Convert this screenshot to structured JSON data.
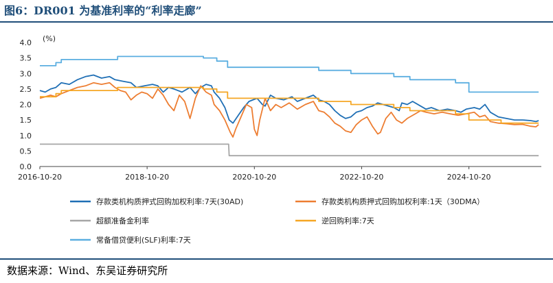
{
  "figure": {
    "title": "图6：DR001 为基准利率的“利率走廊”",
    "source": "数据来源：Wind、东吴证券研究所"
  },
  "chart_data": {
    "type": "line",
    "title": "图6：DR001 为基准利率的“利率走廊”",
    "xlabel": "",
    "ylabel": "(%)",
    "ylim": [
      0,
      4
    ],
    "xlim": [
      2016.8,
      2026.15
    ],
    "yticks": [
      "0.0",
      "0.5",
      "1.0",
      "1.5",
      "2.0",
      "2.5",
      "3.0",
      "3.5",
      "4.0"
    ],
    "xticks": [
      {
        "label": "2016-10-20",
        "x": 2016.8
      },
      {
        "label": "2018-10-20",
        "x": 2018.8
      },
      {
        "label": "2020-10-20",
        "x": 2020.8
      },
      {
        "label": "2022-10-20",
        "x": 2022.8
      },
      {
        "label": "2024-10-20",
        "x": 2024.8
      }
    ],
    "grid": false,
    "legend_position": "bottom",
    "series": [
      {
        "name": "存款类机构质押式回购加权利率:7天(30AD)",
        "color": "#1f6fb5",
        "points": [
          [
            2016.8,
            2.45
          ],
          [
            2016.9,
            2.4
          ],
          [
            2017.0,
            2.5
          ],
          [
            2017.1,
            2.55
          ],
          [
            2017.2,
            2.7
          ],
          [
            2017.35,
            2.65
          ],
          [
            2017.5,
            2.8
          ],
          [
            2017.65,
            2.9
          ],
          [
            2017.8,
            2.95
          ],
          [
            2017.95,
            2.85
          ],
          [
            2018.1,
            2.9
          ],
          [
            2018.2,
            2.8
          ],
          [
            2018.35,
            2.75
          ],
          [
            2018.5,
            2.7
          ],
          [
            2018.6,
            2.55
          ],
          [
            2018.75,
            2.6
          ],
          [
            2018.9,
            2.65
          ],
          [
            2019.0,
            2.6
          ],
          [
            2019.1,
            2.4
          ],
          [
            2019.2,
            2.55
          ],
          [
            2019.3,
            2.5
          ],
          [
            2019.45,
            2.4
          ],
          [
            2019.6,
            2.55
          ],
          [
            2019.7,
            2.35
          ],
          [
            2019.8,
            2.55
          ],
          [
            2019.9,
            2.65
          ],
          [
            2020.0,
            2.6
          ],
          [
            2020.05,
            2.4
          ],
          [
            2020.15,
            2.2
          ],
          [
            2020.25,
            1.9
          ],
          [
            2020.33,
            1.5
          ],
          [
            2020.4,
            1.4
          ],
          [
            2020.5,
            1.65
          ],
          [
            2020.6,
            1.9
          ],
          [
            2020.7,
            2.1
          ],
          [
            2020.85,
            2.2
          ],
          [
            2020.95,
            2.0
          ],
          [
            2021.0,
            1.95
          ],
          [
            2021.1,
            2.3
          ],
          [
            2021.2,
            2.2
          ],
          [
            2021.35,
            2.15
          ],
          [
            2021.5,
            2.25
          ],
          [
            2021.6,
            2.1
          ],
          [
            2021.75,
            2.2
          ],
          [
            2021.9,
            2.3
          ],
          [
            2022.0,
            2.15
          ],
          [
            2022.1,
            2.1
          ],
          [
            2022.2,
            2.0
          ],
          [
            2022.3,
            1.8
          ],
          [
            2022.4,
            1.65
          ],
          [
            2022.5,
            1.55
          ],
          [
            2022.6,
            1.6
          ],
          [
            2022.7,
            1.75
          ],
          [
            2022.8,
            1.8
          ],
          [
            2022.9,
            1.9
          ],
          [
            2023.0,
            1.95
          ],
          [
            2023.1,
            2.05
          ],
          [
            2023.2,
            2.0
          ],
          [
            2023.3,
            1.95
          ],
          [
            2023.4,
            1.9
          ],
          [
            2023.5,
            1.8
          ],
          [
            2023.55,
            2.05
          ],
          [
            2023.65,
            2.0
          ],
          [
            2023.75,
            2.1
          ],
          [
            2023.9,
            1.95
          ],
          [
            2024.0,
            1.85
          ],
          [
            2024.1,
            1.9
          ],
          [
            2024.25,
            1.8
          ],
          [
            2024.4,
            1.85
          ],
          [
            2024.55,
            1.8
          ],
          [
            2024.65,
            1.75
          ],
          [
            2024.75,
            1.85
          ],
          [
            2024.9,
            1.9
          ],
          [
            2025.0,
            1.85
          ],
          [
            2025.1,
            2.0
          ],
          [
            2025.2,
            1.75
          ],
          [
            2025.35,
            1.6
          ],
          [
            2025.5,
            1.55
          ],
          [
            2025.65,
            1.5
          ],
          [
            2025.8,
            1.5
          ],
          [
            2025.95,
            1.48
          ],
          [
            2026.05,
            1.45
          ],
          [
            2026.1,
            1.48
          ]
        ]
      },
      {
        "name": "存款类机构质押式回购加权利率:1天（30DMA）",
        "color": "#ed7d31",
        "points": [
          [
            2016.8,
            2.2
          ],
          [
            2016.9,
            2.25
          ],
          [
            2017.0,
            2.3
          ],
          [
            2017.1,
            2.25
          ],
          [
            2017.2,
            2.35
          ],
          [
            2017.35,
            2.45
          ],
          [
            2017.5,
            2.55
          ],
          [
            2017.65,
            2.6
          ],
          [
            2017.8,
            2.7
          ],
          [
            2017.95,
            2.65
          ],
          [
            2018.1,
            2.7
          ],
          [
            2018.2,
            2.55
          ],
          [
            2018.3,
            2.45
          ],
          [
            2018.4,
            2.4
          ],
          [
            2018.5,
            2.15
          ],
          [
            2018.6,
            2.3
          ],
          [
            2018.7,
            2.4
          ],
          [
            2018.8,
            2.35
          ],
          [
            2018.9,
            2.2
          ],
          [
            2019.0,
            2.5
          ],
          [
            2019.1,
            2.3
          ],
          [
            2019.2,
            2.0
          ],
          [
            2019.3,
            1.8
          ],
          [
            2019.4,
            2.3
          ],
          [
            2019.5,
            2.1
          ],
          [
            2019.6,
            1.55
          ],
          [
            2019.7,
            2.2
          ],
          [
            2019.8,
            2.6
          ],
          [
            2019.9,
            2.4
          ],
          [
            2020.0,
            2.3
          ],
          [
            2020.05,
            2.0
          ],
          [
            2020.15,
            1.8
          ],
          [
            2020.25,
            1.5
          ],
          [
            2020.3,
            1.3
          ],
          [
            2020.35,
            1.1
          ],
          [
            2020.4,
            0.95
          ],
          [
            2020.45,
            1.2
          ],
          [
            2020.55,
            1.6
          ],
          [
            2020.65,
            2.0
          ],
          [
            2020.75,
            1.9
          ],
          [
            2020.8,
            1.2
          ],
          [
            2020.85,
            1.0
          ],
          [
            2020.9,
            1.5
          ],
          [
            2021.0,
            2.2
          ],
          [
            2021.1,
            1.8
          ],
          [
            2021.2,
            2.0
          ],
          [
            2021.3,
            1.9
          ],
          [
            2021.45,
            2.05
          ],
          [
            2021.6,
            1.85
          ],
          [
            2021.75,
            2.0
          ],
          [
            2021.9,
            2.1
          ],
          [
            2022.0,
            1.8
          ],
          [
            2022.1,
            1.75
          ],
          [
            2022.2,
            1.6
          ],
          [
            2022.3,
            1.4
          ],
          [
            2022.4,
            1.3
          ],
          [
            2022.5,
            1.15
          ],
          [
            2022.6,
            1.1
          ],
          [
            2022.7,
            1.35
          ],
          [
            2022.8,
            1.5
          ],
          [
            2022.9,
            1.6
          ],
          [
            2023.0,
            1.3
          ],
          [
            2023.1,
            1.05
          ],
          [
            2023.15,
            1.1
          ],
          [
            2023.25,
            1.55
          ],
          [
            2023.35,
            1.75
          ],
          [
            2023.45,
            1.5
          ],
          [
            2023.55,
            1.4
          ],
          [
            2023.65,
            1.55
          ],
          [
            2023.8,
            1.7
          ],
          [
            2023.9,
            1.8
          ],
          [
            2024.0,
            1.75
          ],
          [
            2024.15,
            1.7
          ],
          [
            2024.3,
            1.75
          ],
          [
            2024.45,
            1.7
          ],
          [
            2024.6,
            1.65
          ],
          [
            2024.75,
            1.7
          ],
          [
            2024.9,
            1.75
          ],
          [
            2025.0,
            1.6
          ],
          [
            2025.1,
            1.65
          ],
          [
            2025.2,
            1.45
          ],
          [
            2025.35,
            1.4
          ],
          [
            2025.5,
            1.38
          ],
          [
            2025.65,
            1.35
          ],
          [
            2025.8,
            1.36
          ],
          [
            2025.95,
            1.3
          ],
          [
            2026.05,
            1.28
          ],
          [
            2026.1,
            1.35
          ]
        ]
      },
      {
        "name": "超额准备金利率",
        "color": "#a6a6a6",
        "points": [
          [
            2016.8,
            0.72
          ],
          [
            2020.32,
            0.72
          ],
          [
            2020.33,
            0.35
          ],
          [
            2026.1,
            0.35
          ]
        ]
      },
      {
        "name": "逆回购利率:7天",
        "color": "#f5a623",
        "points": [
          [
            2016.8,
            2.25
          ],
          [
            2017.1,
            2.25
          ],
          [
            2017.1,
            2.35
          ],
          [
            2017.2,
            2.35
          ],
          [
            2017.2,
            2.45
          ],
          [
            2018.25,
            2.45
          ],
          [
            2018.25,
            2.55
          ],
          [
            2019.85,
            2.55
          ],
          [
            2019.85,
            2.5
          ],
          [
            2020.1,
            2.5
          ],
          [
            2020.1,
            2.4
          ],
          [
            2020.3,
            2.4
          ],
          [
            2020.3,
            2.2
          ],
          [
            2022.0,
            2.2
          ],
          [
            2022.0,
            2.1
          ],
          [
            2022.6,
            2.1
          ],
          [
            2022.6,
            2.0
          ],
          [
            2023.4,
            2.0
          ],
          [
            2023.4,
            1.9
          ],
          [
            2023.7,
            1.9
          ],
          [
            2023.7,
            1.8
          ],
          [
            2024.55,
            1.8
          ],
          [
            2024.55,
            1.7
          ],
          [
            2024.8,
            1.7
          ],
          [
            2024.8,
            1.5
          ],
          [
            2025.4,
            1.5
          ],
          [
            2025.4,
            1.4
          ],
          [
            2026.1,
            1.4
          ]
        ]
      },
      {
        "name": "常备借贷便利(SLF)利率:7天",
        "color": "#5aaee0",
        "points": [
          [
            2016.8,
            3.25
          ],
          [
            2017.1,
            3.25
          ],
          [
            2017.1,
            3.35
          ],
          [
            2017.2,
            3.35
          ],
          [
            2017.2,
            3.45
          ],
          [
            2018.25,
            3.45
          ],
          [
            2018.25,
            3.55
          ],
          [
            2019.85,
            3.55
          ],
          [
            2019.85,
            3.5
          ],
          [
            2020.1,
            3.5
          ],
          [
            2020.1,
            3.4
          ],
          [
            2020.3,
            3.4
          ],
          [
            2020.3,
            3.2
          ],
          [
            2022.0,
            3.2
          ],
          [
            2022.0,
            3.1
          ],
          [
            2022.6,
            3.1
          ],
          [
            2022.6,
            3.0
          ],
          [
            2023.4,
            3.0
          ],
          [
            2023.4,
            2.9
          ],
          [
            2023.7,
            2.9
          ],
          [
            2023.7,
            2.8
          ],
          [
            2024.55,
            2.8
          ],
          [
            2024.55,
            2.7
          ],
          [
            2024.8,
            2.7
          ],
          [
            2024.8,
            2.4
          ],
          [
            2026.1,
            2.4
          ]
        ]
      }
    ],
    "legend": [
      {
        "label": "存款类机构质押式回购加权利率:7天(30AD)",
        "color": "#1f6fb5"
      },
      {
        "label": "存款类机构质押式回购加权利率:1天（30DMA）",
        "color": "#ed7d31"
      },
      {
        "label": "超额准备金利率",
        "color": "#a6a6a6"
      },
      {
        "label": "逆回购利率:7天",
        "color": "#f5a623"
      },
      {
        "label": "常备借贷便利(SLF)利率:7天",
        "color": "#5aaee0"
      }
    ]
  }
}
